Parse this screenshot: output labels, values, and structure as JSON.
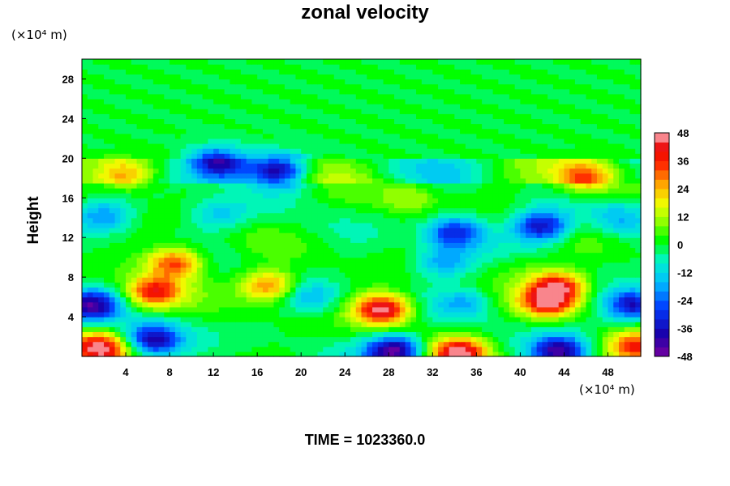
{
  "chart_data": {
    "type": "heatmap",
    "title": "zonal velocity",
    "xlabel": "",
    "ylabel": "Height",
    "x_unit_label": "(×10⁴ m)",
    "y_unit_label": "(×10⁴ m)",
    "xlim": [
      0,
      51
    ],
    "ylim": [
      0,
      30
    ],
    "x_ticks": [
      4,
      8,
      12,
      16,
      20,
      24,
      28,
      32,
      36,
      40,
      44,
      48
    ],
    "y_ticks": [
      4,
      8,
      12,
      16,
      20,
      24,
      28
    ],
    "colorbar": {
      "min": -48,
      "max": 48,
      "step": 4,
      "tick_values": [
        48,
        36,
        24,
        12,
        0,
        -12,
        -24,
        -36,
        -48
      ],
      "tick_labels": [
        "48",
        "36",
        "24",
        "12",
        "0",
        "-12",
        "-24",
        "-36",
        "-48"
      ]
    },
    "features": [
      {
        "x": 27.5,
        "y": 4.8,
        "value": 48
      },
      {
        "x": 6.5,
        "y": 6.5,
        "value": 38
      },
      {
        "x": 8.5,
        "y": 9.5,
        "value": 36
      },
      {
        "x": 42.5,
        "y": 5.5,
        "value": 40
      },
      {
        "x": 43.5,
        "y": 7.2,
        "value": 38
      },
      {
        "x": 1.5,
        "y": 0.8,
        "value": 46
      },
      {
        "x": 34.5,
        "y": 0.3,
        "value": 48
      },
      {
        "x": 50.5,
        "y": 1.0,
        "value": 44
      },
      {
        "x": 46,
        "y": 18,
        "value": 30
      },
      {
        "x": 4,
        "y": 18.3,
        "value": 24
      },
      {
        "x": 17,
        "y": 7.2,
        "value": 32
      },
      {
        "x": 28.5,
        "y": 0.6,
        "value": -48
      },
      {
        "x": 43.5,
        "y": 0.5,
        "value": -46
      },
      {
        "x": 6.5,
        "y": 1.7,
        "value": -40
      },
      {
        "x": 0.8,
        "y": 5.2,
        "value": -40
      },
      {
        "x": 50.3,
        "y": 5.2,
        "value": -40
      },
      {
        "x": 18,
        "y": 18.8,
        "value": -40
      },
      {
        "x": 12.5,
        "y": 19.6,
        "value": -34
      },
      {
        "x": 42,
        "y": 13.2,
        "value": -38
      },
      {
        "x": 34,
        "y": 12.6,
        "value": -32
      },
      {
        "x": 2,
        "y": 14.2,
        "value": -22
      },
      {
        "x": 12.5,
        "y": 14.3,
        "value": -14
      },
      {
        "x": 35,
        "y": 5.5,
        "value": -16
      },
      {
        "x": 33,
        "y": 9.5,
        "value": -20
      },
      {
        "x": 21,
        "y": 6.0,
        "value": -16
      },
      {
        "x": 49,
        "y": 13.8,
        "value": -14
      },
      {
        "x": 30,
        "y": 16.2,
        "value": 12
      },
      {
        "x": 40,
        "y": 9.0,
        "value": 6
      }
    ],
    "legend": "right colorbar",
    "grid": false
  },
  "footer": {
    "time_label": "TIME = 1023360.0"
  }
}
